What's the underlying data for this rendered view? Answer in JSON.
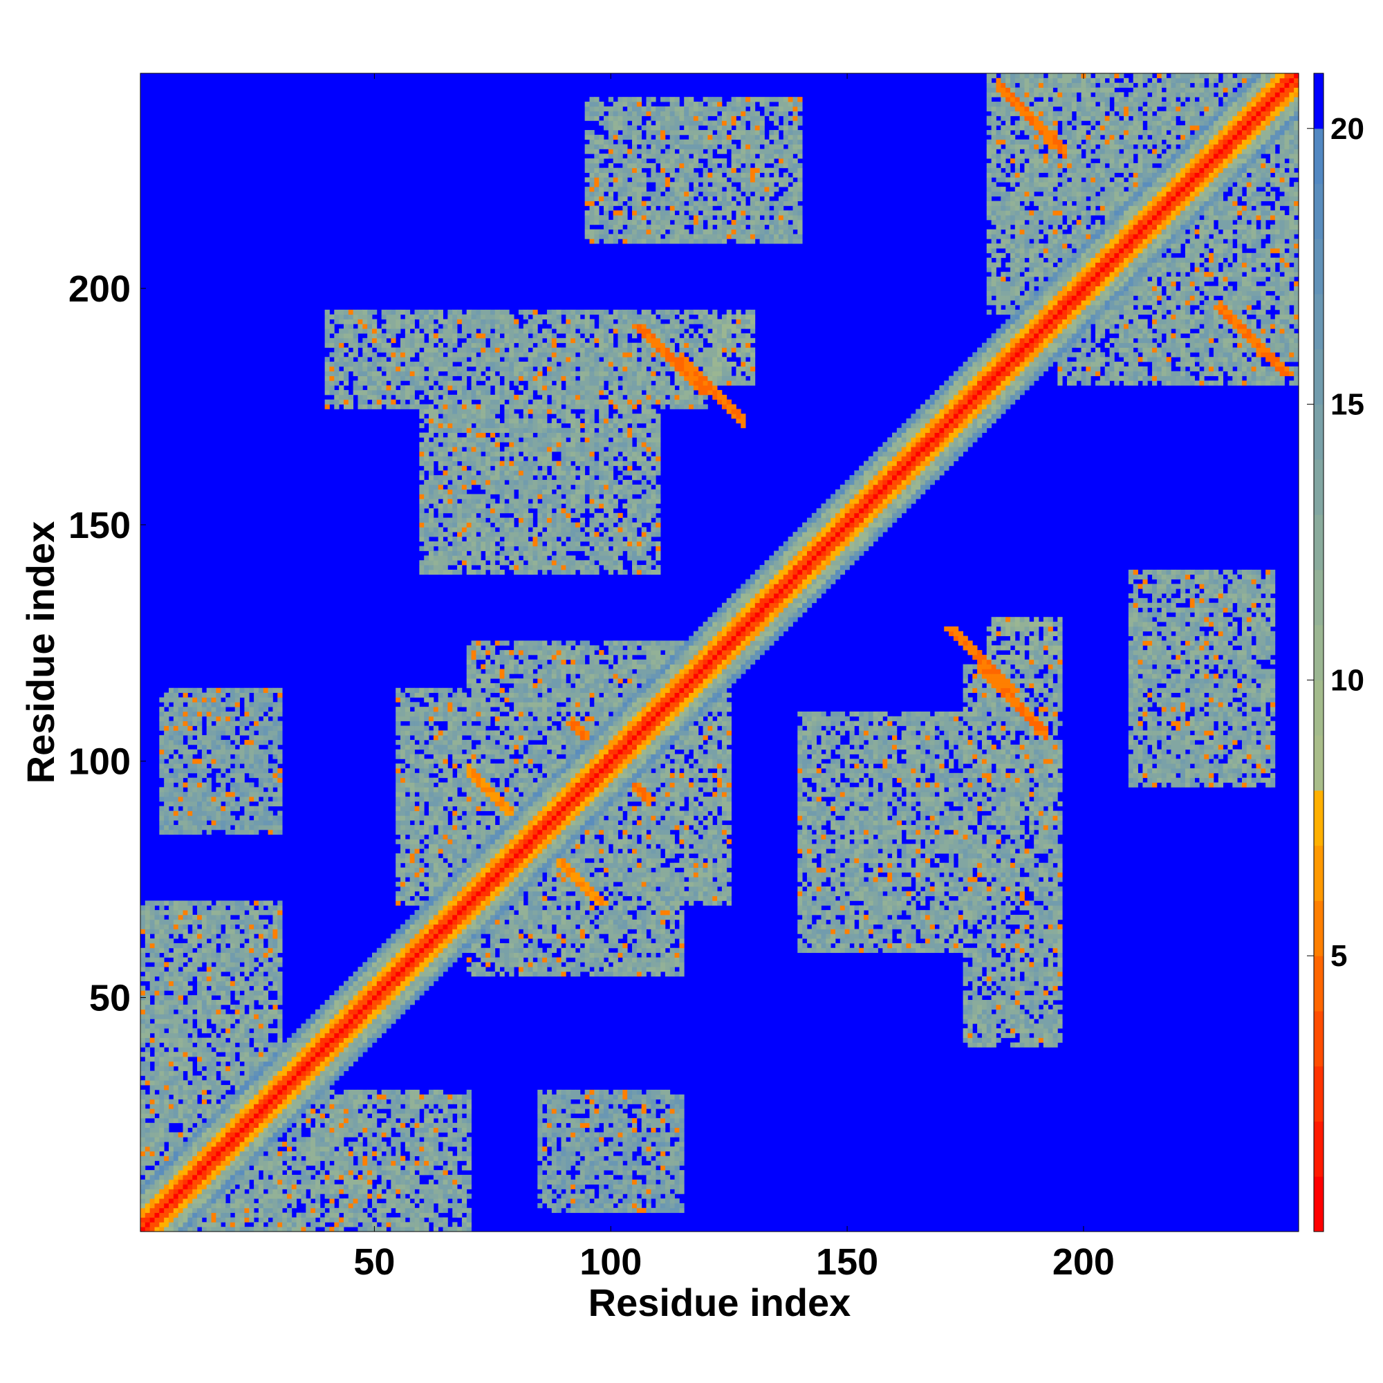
{
  "chart_data": {
    "type": "heatmap",
    "title": "",
    "xlabel": "Residue index",
    "ylabel": "Residue index",
    "xlim": [
      1,
      245
    ],
    "ylim": [
      1,
      245
    ],
    "x_ticks": [
      50,
      100,
      150,
      200
    ],
    "y_ticks": [
      50,
      100,
      150,
      200
    ],
    "n_residues": 245,
    "value_range": [
      0,
      21
    ],
    "colorbar": {
      "ticks": [
        5,
        10,
        15,
        20
      ],
      "range": [
        0,
        21
      ],
      "colors": [
        {
          "max": 1,
          "color": "#ff0000"
        },
        {
          "max": 2,
          "color": "#ff1a00"
        },
        {
          "max": 3,
          "color": "#ff3300"
        },
        {
          "max": 4,
          "color": "#ff4d00"
        },
        {
          "max": 5,
          "color": "#ff6600"
        },
        {
          "max": 6,
          "color": "#ff7f00"
        },
        {
          "max": 7,
          "color": "#ff9900"
        },
        {
          "max": 8,
          "color": "#ffb000"
        },
        {
          "max": 9,
          "color": "#a9bd8a"
        },
        {
          "max": 10,
          "color": "#a3bb8c"
        },
        {
          "max": 11,
          "color": "#9bb692"
        },
        {
          "max": 12,
          "color": "#93b197"
        },
        {
          "max": 13,
          "color": "#8aab9c"
        },
        {
          "max": 14,
          "color": "#82a6a2"
        },
        {
          "max": 15,
          "color": "#7aa1a8"
        },
        {
          "max": 16,
          "color": "#729cad"
        },
        {
          "max": 17,
          "color": "#6a97b3"
        },
        {
          "max": 18,
          "color": "#6292b8"
        },
        {
          "max": 19,
          "color": "#5a8dbd"
        },
        {
          "max": 20,
          "color": "#5288c2"
        },
        {
          "max": 21,
          "color": "#0000ff"
        }
      ]
    },
    "structure": {
      "diagonal": "distance ~0 along i=j, rising to ~8 within |i-j|<=4 and to ~16 within |i-j|<=9",
      "background_value": 21,
      "contact_regions": [
        {
          "i_range": [
            1,
            30
          ],
          "j_range": [
            1,
            70
          ],
          "value": 13
        },
        {
          "i_range": [
            30,
            70
          ],
          "j_range": [
            1,
            30
          ],
          "value": 13
        },
        {
          "i_range": [
            70,
            115
          ],
          "j_range": [
            55,
            125
          ],
          "value": 13
        },
        {
          "i_range": [
            85,
            115
          ],
          "j_range": [
            5,
            30
          ],
          "value": 14
        },
        {
          "i_range": [
            140,
            175
          ],
          "j_range": [
            60,
            110
          ],
          "value": 13
        },
        {
          "i_range": [
            175,
            195
          ],
          "j_range": [
            40,
            120
          ],
          "value": 13
        },
        {
          "i_range": [
            100,
            130
          ],
          "j_range": [
            180,
            195
          ],
          "value": 12
        },
        {
          "i_range": [
            180,
            235
          ],
          "j_range": [
            195,
            245
          ],
          "value": 13
        },
        {
          "i_range": [
            205,
            245
          ],
          "j_range": [
            215,
            245
          ],
          "value": 14
        },
        {
          "i_range": [
            210,
            240
          ],
          "j_range": [
            95,
            140
          ],
          "value": 13
        }
      ],
      "antiparallel_strands": [
        {
          "sum": 200,
          "i_range": [
            92,
            108
          ],
          "value": 4
        },
        {
          "sum": 300,
          "i_range": [
            115,
            128
          ],
          "value": 4
        },
        {
          "sum": 298,
          "i_range": [
            178,
            192
          ],
          "value": 4
        },
        {
          "sum": 425,
          "i_range": [
            182,
            196
          ],
          "value": 4
        },
        {
          "sum": 168,
          "i_range": [
            70,
            85
          ],
          "value": 5
        }
      ]
    }
  }
}
